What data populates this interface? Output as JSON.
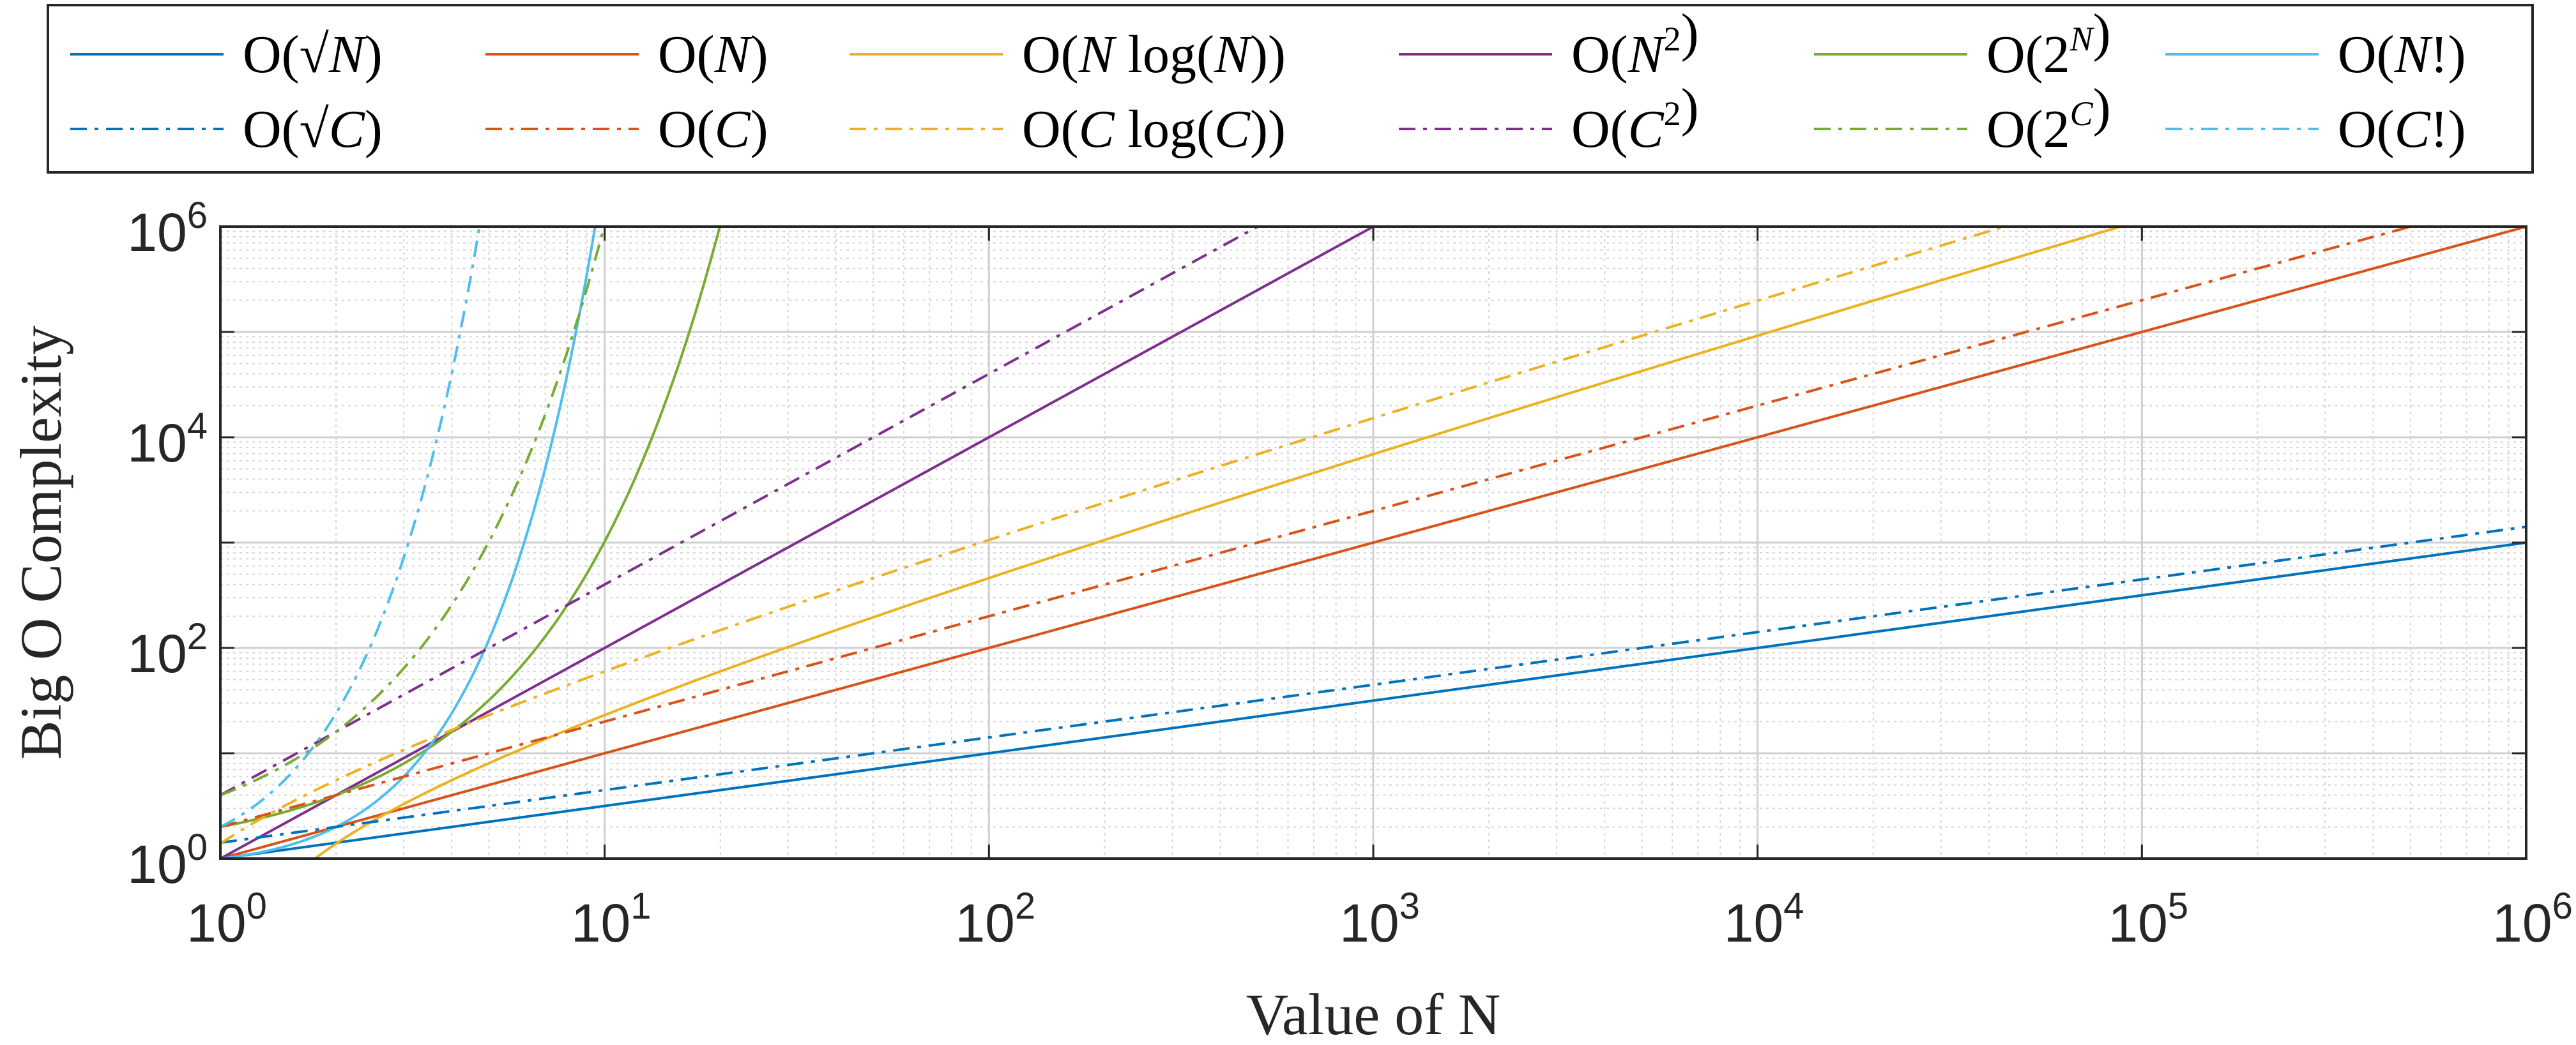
{
  "chart_data": {
    "type": "line",
    "xscale": "log",
    "yscale": "log",
    "xlim": [
      1,
      1000000
    ],
    "ylim": [
      1,
      1000000
    ],
    "xlabel": "Value of N",
    "ylabel": "Big O Complexity",
    "grid": true,
    "minor_grid": true,
    "legend_position": "top, outside plot, 6 columns",
    "x_ticks": [
      {
        "base": "10",
        "exp": "0"
      },
      {
        "base": "10",
        "exp": "1"
      },
      {
        "base": "10",
        "exp": "2"
      },
      {
        "base": "10",
        "exp": "3"
      },
      {
        "base": "10",
        "exp": "4"
      },
      {
        "base": "10",
        "exp": "5"
      },
      {
        "base": "10",
        "exp": "6"
      }
    ],
    "y_ticks": [
      {
        "base": "10",
        "exp": "0"
      },
      {
        "base": "10",
        "exp": "2"
      },
      {
        "base": "10",
        "exp": "4"
      },
      {
        "base": "10",
        "exp": "6"
      }
    ],
    "C": 2,
    "series": [
      {
        "name": "O(√N)",
        "func": "sqrt",
        "scale": "N",
        "color": "#0072BD",
        "style": "solid"
      },
      {
        "name": "O(N)",
        "func": "lin",
        "scale": "N",
        "color": "#D95319",
        "style": "solid"
      },
      {
        "name": "O(N log(N))",
        "func": "nlogn",
        "scale": "N",
        "color": "#EDB120",
        "style": "solid"
      },
      {
        "name": "O(N²)",
        "func": "sq",
        "scale": "N",
        "color": "#7E2F8E",
        "style": "solid"
      },
      {
        "name": "O(2^N)",
        "func": "exp2",
        "scale": "N",
        "color": "#77AC30",
        "style": "solid"
      },
      {
        "name": "O(N!)",
        "func": "fact",
        "scale": "N",
        "color": "#4DBEEE",
        "style": "solid"
      },
      {
        "name": "O(√C)",
        "func": "sqrt",
        "scale": "C",
        "color": "#0072BD",
        "style": "dashdot"
      },
      {
        "name": "O(C)",
        "func": "lin",
        "scale": "C",
        "color": "#D95319",
        "style": "dashdot"
      },
      {
        "name": "O(C log(C))",
        "func": "nlogn",
        "scale": "C",
        "color": "#EDB120",
        "style": "dashdot"
      },
      {
        "name": "O(C²)",
        "func": "sq",
        "scale": "C",
        "color": "#7E2F8E",
        "style": "dashdot"
      },
      {
        "name": "O(2^C)",
        "func": "exp2",
        "scale": "C",
        "color": "#77AC30",
        "style": "dashdot"
      },
      {
        "name": "O(C!)",
        "func": "fact",
        "scale": "C",
        "color": "#4DBEEE",
        "style": "dashdot"
      }
    ],
    "legend_entries": [
      [
        {
          "series": 0,
          "parts": [
            [
              "O(√",
              ""
            ],
            [
              "N",
              "i"
            ],
            [
              ")",
              ""
            ]
          ]
        },
        {
          "series": 1,
          "parts": [
            [
              "O(",
              ""
            ],
            [
              "N",
              "i"
            ],
            [
              ")",
              ""
            ]
          ]
        },
        {
          "series": 2,
          "parts": [
            [
              "O(",
              ""
            ],
            [
              "N",
              "i"
            ],
            [
              " log(",
              ""
            ],
            [
              "N",
              "i"
            ],
            [
              "))",
              ""
            ]
          ]
        },
        {
          "series": 3,
          "parts": [
            [
              "O(",
              ""
            ],
            [
              "N",
              "i"
            ],
            [
              "2",
              "s"
            ],
            [
              ")",
              ""
            ]
          ]
        },
        {
          "series": 4,
          "parts": [
            [
              "O(2",
              ""
            ],
            [
              "N",
              "si"
            ],
            [
              ")",
              ""
            ]
          ]
        },
        {
          "series": 5,
          "parts": [
            [
              "O(",
              ""
            ],
            [
              "N",
              "i"
            ],
            [
              "!)",
              ""
            ]
          ]
        }
      ],
      [
        {
          "series": 6,
          "parts": [
            [
              "O(√",
              ""
            ],
            [
              "C",
              "i"
            ],
            [
              ")",
              ""
            ]
          ]
        },
        {
          "series": 7,
          "parts": [
            [
              "O(",
              ""
            ],
            [
              "C",
              "i"
            ],
            [
              ")",
              ""
            ]
          ]
        },
        {
          "series": 8,
          "parts": [
            [
              "O(",
              ""
            ],
            [
              "C",
              "i"
            ],
            [
              " log(",
              ""
            ],
            [
              "C",
              "i"
            ],
            [
              "))",
              ""
            ]
          ]
        },
        {
          "series": 9,
          "parts": [
            [
              "O(",
              ""
            ],
            [
              "C",
              "i"
            ],
            [
              "2",
              "s"
            ],
            [
              ")",
              ""
            ]
          ]
        },
        {
          "series": 10,
          "parts": [
            [
              "O(2",
              ""
            ],
            [
              "C",
              "si"
            ],
            [
              ")",
              ""
            ]
          ]
        },
        {
          "series": 11,
          "parts": [
            [
              "O(",
              ""
            ],
            [
              "C",
              "i"
            ],
            [
              "!)",
              ""
            ]
          ]
        }
      ]
    ]
  }
}
